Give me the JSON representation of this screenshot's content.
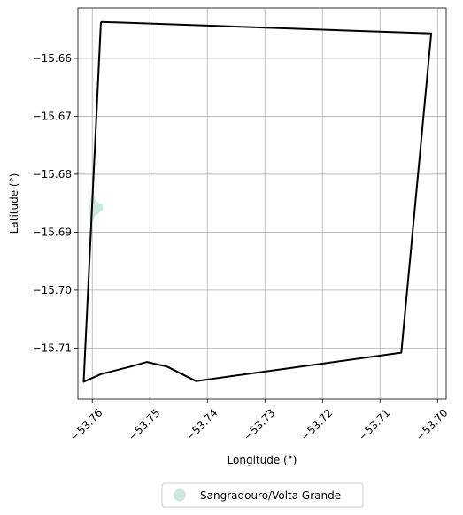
{
  "chart_data": {
    "type": "map",
    "xlabel": "Longitude (°)",
    "ylabel": "Latitude (°)",
    "xlim": [
      -53.7625,
      -53.6985
    ],
    "ylim": [
      -15.7188,
      -15.6513
    ],
    "grid": true,
    "x_ticks": [
      {
        "value": -53.76,
        "label": "−53.76"
      },
      {
        "value": -53.75,
        "label": "−53.75"
      },
      {
        "value": -53.74,
        "label": "−53.74"
      },
      {
        "value": -53.73,
        "label": "−53.73"
      },
      {
        "value": -53.72,
        "label": "−53.72"
      },
      {
        "value": -53.71,
        "label": "−53.71"
      },
      {
        "value": -53.7,
        "label": "−53.70"
      }
    ],
    "y_ticks": [
      {
        "value": -15.66,
        "label": "−15.66"
      },
      {
        "value": -15.67,
        "label": "−15.67"
      },
      {
        "value": -15.68,
        "label": "−15.68"
      },
      {
        "value": -15.69,
        "label": "−15.69"
      },
      {
        "value": -15.7,
        "label": "−15.70"
      },
      {
        "value": -15.71,
        "label": "−15.71"
      }
    ],
    "boundary": {
      "color": "#000000",
      "points": [
        [
          -53.7585,
          -15.6537
        ],
        [
          -53.7011,
          -15.6557
        ],
        [
          -53.7063,
          -15.7108
        ],
        [
          -53.742,
          -15.7157
        ],
        [
          -53.747,
          -15.7132
        ],
        [
          -53.7505,
          -15.7124
        ],
        [
          -53.753,
          -15.7131
        ],
        [
          -53.7585,
          -15.7145
        ],
        [
          -53.7615,
          -15.7158
        ],
        [
          -53.7585,
          -15.6537
        ]
      ]
    },
    "region": {
      "name": "Sangradouro/Volta Grande",
      "color": "#cbe8dc",
      "points": [
        [
          -53.76,
          -15.683
        ],
        [
          -53.7595,
          -15.6843
        ],
        [
          -53.759,
          -15.685
        ],
        [
          -53.7583,
          -15.6852
        ],
        [
          -53.7582,
          -15.686
        ],
        [
          -53.759,
          -15.6867
        ],
        [
          -53.7597,
          -15.6873
        ],
        [
          -53.76,
          -15.6885
        ],
        [
          -53.7603,
          -15.6893
        ],
        [
          -53.7604,
          -15.687
        ],
        [
          -53.7603,
          -15.6845
        ],
        [
          -53.76,
          -15.683
        ]
      ]
    },
    "legend": {
      "placement": "bottom-center",
      "entries": [
        {
          "label": "Sangradouro/Volta Grande",
          "color": "#cbe8dc"
        }
      ]
    }
  }
}
